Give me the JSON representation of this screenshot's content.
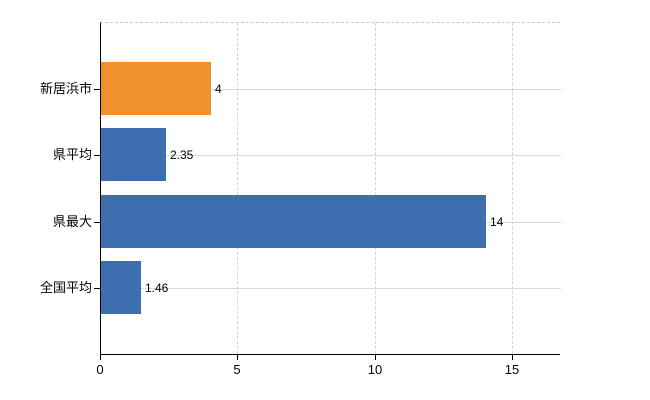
{
  "chart_data": {
    "type": "bar",
    "orientation": "horizontal",
    "title": "",
    "xlabel": "",
    "ylabel": "",
    "categories": [
      "新居浜市",
      "県平均",
      "県最大",
      "全国平均"
    ],
    "values": [
      4,
      2.35,
      14,
      1.46
    ],
    "value_labels": [
      "4",
      "2.35",
      "14",
      "1.46"
    ],
    "bar_colors": [
      "#f0912d",
      "#3d6fae",
      "#3d6fae",
      "#3d6fae"
    ],
    "xticks": [
      0,
      5,
      10,
      15
    ],
    "xtick_labels": [
      "0",
      "5",
      "10",
      "15"
    ],
    "xlim": [
      0,
      16.7
    ],
    "grid": true,
    "legend": false,
    "colors": {
      "bar_highlight": "#f0912d",
      "bar_default": "#3d6fae",
      "gridline": "#d9d9d9",
      "axis": "#000000",
      "text": "#000000",
      "background": "#ffffff"
    }
  }
}
